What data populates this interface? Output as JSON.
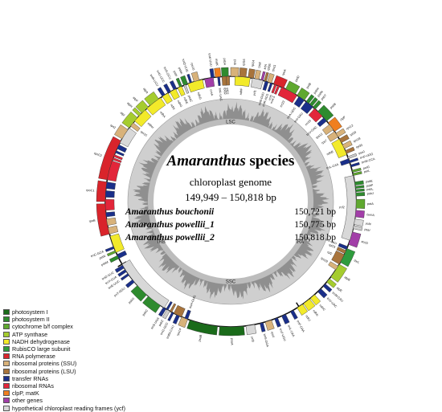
{
  "title": {
    "genus": "Amaranthus",
    "suffix": "species"
  },
  "subtitle": "chloroplast genome",
  "size_range": "149,949 – 150,818 bp",
  "accessions": [
    {
      "name": "Amaranthus bouchonii",
      "size": "150,721 bp"
    },
    {
      "name": "Amaranthus powellii_1",
      "size": "150,775 bp"
    },
    {
      "name": "Amaranthus powellii_2",
      "size": "150,818 bp"
    }
  ],
  "regions": [
    "LSC",
    "IRB",
    "SSC",
    "IRA"
  ],
  "legend": [
    {
      "label": "photosystem I",
      "color": "#1a6b1a"
    },
    {
      "label": "photosystem II",
      "color": "#2e8b2e"
    },
    {
      "label": "cytochrome b/f complex",
      "color": "#5fa82f"
    },
    {
      "label": "ATP synthase",
      "color": "#a5cc2e"
    },
    {
      "label": "NADH dehydrogenase",
      "color": "#f2ea2a"
    },
    {
      "label": "RubisCO large subunit",
      "color": "#2f9c3d"
    },
    {
      "label": "RNA polymerase",
      "color": "#d9242b"
    },
    {
      "label": "ribosomal proteins (SSU)",
      "color": "#d8b27a"
    },
    {
      "label": "ribosomal proteins (LSU)",
      "color": "#a8743c"
    },
    {
      "label": "transfer RNAs",
      "color": "#1a2f8a"
    },
    {
      "label": "ribosomal RNAs",
      "color": "#e2263a"
    },
    {
      "label": "clpP, matK",
      "color": "#f07f1f"
    },
    {
      "label": "other genes",
      "color": "#a23ea8"
    },
    {
      "label": "hypothetical chloroplast reading frames (ycf)",
      "color": "#d8d8d8"
    }
  ],
  "genes": [
    {
      "name": "psaA",
      "color": "#1a6b1a"
    },
    {
      "name": "psaB",
      "color": "#1a6b1a"
    },
    {
      "name": "psbA",
      "color": "#2e8b2e"
    },
    {
      "name": "psbB",
      "color": "#2e8b2e"
    },
    {
      "name": "psbC",
      "color": "#2e8b2e"
    },
    {
      "name": "psbD",
      "color": "#2e8b2e"
    },
    {
      "name": "psbE",
      "color": "#2e8b2e"
    },
    {
      "name": "psbF",
      "color": "#2e8b2e"
    },
    {
      "name": "psbH",
      "color": "#2e8b2e"
    },
    {
      "name": "psbI",
      "color": "#2e8b2e"
    },
    {
      "name": "psbJ",
      "color": "#2e8b2e"
    },
    {
      "name": "psbK",
      "color": "#2e8b2e"
    },
    {
      "name": "psbL",
      "color": "#2e8b2e"
    },
    {
      "name": "psbM",
      "color": "#2e8b2e"
    },
    {
      "name": "psbN",
      "color": "#2e8b2e"
    },
    {
      "name": "psbT",
      "color": "#2e8b2e"
    },
    {
      "name": "petA",
      "color": "#5fa82f"
    },
    {
      "name": "petB",
      "color": "#5fa82f"
    },
    {
      "name": "petD",
      "color": "#5fa82f"
    },
    {
      "name": "petG",
      "color": "#5fa82f"
    },
    {
      "name": "petL",
      "color": "#5fa82f"
    },
    {
      "name": "petN",
      "color": "#5fa82f"
    },
    {
      "name": "atpA",
      "color": "#a5cc2e"
    },
    {
      "name": "atpB",
      "color": "#a5cc2e"
    },
    {
      "name": "atpE",
      "color": "#a5cc2e"
    },
    {
      "name": "atpF",
      "color": "#a5cc2e"
    },
    {
      "name": "atpH",
      "color": "#a5cc2e"
    },
    {
      "name": "atpI",
      "color": "#a5cc2e"
    },
    {
      "name": "rbcL",
      "color": "#2f9c3d"
    },
    {
      "name": "rpoA",
      "color": "#d9242b"
    },
    {
      "name": "rpoB",
      "color": "#d9242b"
    },
    {
      "name": "rpoC1",
      "color": "#d9242b"
    },
    {
      "name": "rpoC2",
      "color": "#d9242b"
    },
    {
      "name": "ndhA",
      "color": "#f2ea2a"
    },
    {
      "name": "ndhB",
      "color": "#f2ea2a"
    },
    {
      "name": "ndhC",
      "color": "#f2ea2a"
    },
    {
      "name": "ndhD",
      "color": "#f2ea2a"
    },
    {
      "name": "ndhE",
      "color": "#f2ea2a"
    },
    {
      "name": "ndhF",
      "color": "#f2ea2a"
    },
    {
      "name": "ndhG",
      "color": "#f2ea2a"
    },
    {
      "name": "ndhH",
      "color": "#f2ea2a"
    },
    {
      "name": "ndhI",
      "color": "#f2ea2a"
    },
    {
      "name": "ndhJ",
      "color": "#f2ea2a"
    },
    {
      "name": "ndhK",
      "color": "#f2ea2a"
    },
    {
      "name": "rps2",
      "color": "#d8b27a"
    },
    {
      "name": "rps3",
      "color": "#d8b27a"
    },
    {
      "name": "rps4",
      "color": "#d8b27a"
    },
    {
      "name": "rps7",
      "color": "#d8b27a"
    },
    {
      "name": "rps8",
      "color": "#d8b27a"
    },
    {
      "name": "rps11",
      "color": "#d8b27a"
    },
    {
      "name": "rps12",
      "color": "#d8b27a"
    },
    {
      "name": "rps14",
      "color": "#d8b27a"
    },
    {
      "name": "rps15",
      "color": "#d8b27a"
    },
    {
      "name": "rps16",
      "color": "#d8b27a"
    },
    {
      "name": "rps18",
      "color": "#d8b27a"
    },
    {
      "name": "rps19",
      "color": "#d8b27a"
    },
    {
      "name": "rpl2",
      "color": "#a8743c"
    },
    {
      "name": "rpl14",
      "color": "#a8743c"
    },
    {
      "name": "rpl16",
      "color": "#a8743c"
    },
    {
      "name": "rpl20",
      "color": "#a8743c"
    },
    {
      "name": "rpl22",
      "color": "#a8743c"
    },
    {
      "name": "rpl23",
      "color": "#a8743c"
    },
    {
      "name": "rpl32",
      "color": "#a8743c"
    },
    {
      "name": "rpl33",
      "color": "#a8743c"
    },
    {
      "name": "rpl36",
      "color": "#a8743c"
    },
    {
      "name": "rrn16",
      "color": "#e2263a"
    },
    {
      "name": "rrn23",
      "color": "#e2263a"
    },
    {
      "name": "rrn4.5",
      "color": "#e2263a"
    },
    {
      "name": "rrn5",
      "color": "#e2263a"
    },
    {
      "name": "clpP",
      "color": "#f07f1f"
    },
    {
      "name": "matK",
      "color": "#f07f1f"
    },
    {
      "name": "accD",
      "color": "#a23ea8"
    },
    {
      "name": "ccsA",
      "color": "#a23ea8"
    },
    {
      "name": "cemA",
      "color": "#a23ea8"
    },
    {
      "name": "infA",
      "color": "#a23ea8"
    },
    {
      "name": "ycf1",
      "color": "#d8d8d8"
    },
    {
      "name": "ycf2",
      "color": "#d8d8d8"
    },
    {
      "name": "ycf3",
      "color": "#d8d8d8"
    },
    {
      "name": "ycf4",
      "color": "#d8d8d8"
    },
    {
      "name": "trnH-GUG",
      "color": "#1a2f8a"
    },
    {
      "name": "trnK-UUU",
      "color": "#1a2f8a"
    },
    {
      "name": "trnQ-UUG",
      "color": "#1a2f8a"
    },
    {
      "name": "trnS-GCU",
      "color": "#1a2f8a"
    },
    {
      "name": "trnG-UCC",
      "color": "#1a2f8a"
    },
    {
      "name": "trnR-UCU",
      "color": "#1a2f8a"
    },
    {
      "name": "trnC-GCA",
      "color": "#1a2f8a"
    },
    {
      "name": "trnD-GUC",
      "color": "#1a2f8a"
    },
    {
      "name": "trnY-GUA",
      "color": "#1a2f8a"
    },
    {
      "name": "trnE-UUC",
      "color": "#1a2f8a"
    },
    {
      "name": "trnT-GGU",
      "color": "#1a2f8a"
    },
    {
      "name": "trnS-UGA",
      "color": "#1a2f8a"
    },
    {
      "name": "trnG-GCC",
      "color": "#1a2f8a"
    },
    {
      "name": "trnfM-CAU",
      "color": "#1a2f8a"
    },
    {
      "name": "trnS-GGA",
      "color": "#1a2f8a"
    },
    {
      "name": "trnT-UGU",
      "color": "#1a2f8a"
    },
    {
      "name": "trnL-UAA",
      "color": "#1a2f8a"
    },
    {
      "name": "trnF-GAA",
      "color": "#1a2f8a"
    },
    {
      "name": "trnV-UAC",
      "color": "#1a2f8a"
    },
    {
      "name": "trnM-CAU",
      "color": "#1a2f8a"
    },
    {
      "name": "trnW-CCA",
      "color": "#1a2f8a"
    },
    {
      "name": "trnP-UGG",
      "color": "#1a2f8a"
    },
    {
      "name": "trnI-CAU",
      "color": "#1a2f8a"
    },
    {
      "name": "trnL-CAA",
      "color": "#1a2f8a"
    },
    {
      "name": "trnV-GAC",
      "color": "#1a2f8a"
    },
    {
      "name": "trnI-GAU",
      "color": "#1a2f8a"
    },
    {
      "name": "trnA-UGC",
      "color": "#1a2f8a"
    },
    {
      "name": "trnR-ACG",
      "color": "#1a2f8a"
    },
    {
      "name": "trnN-GUU",
      "color": "#1a2f8a"
    },
    {
      "name": "trnL-UAG",
      "color": "#1a2f8a"
    }
  ]
}
